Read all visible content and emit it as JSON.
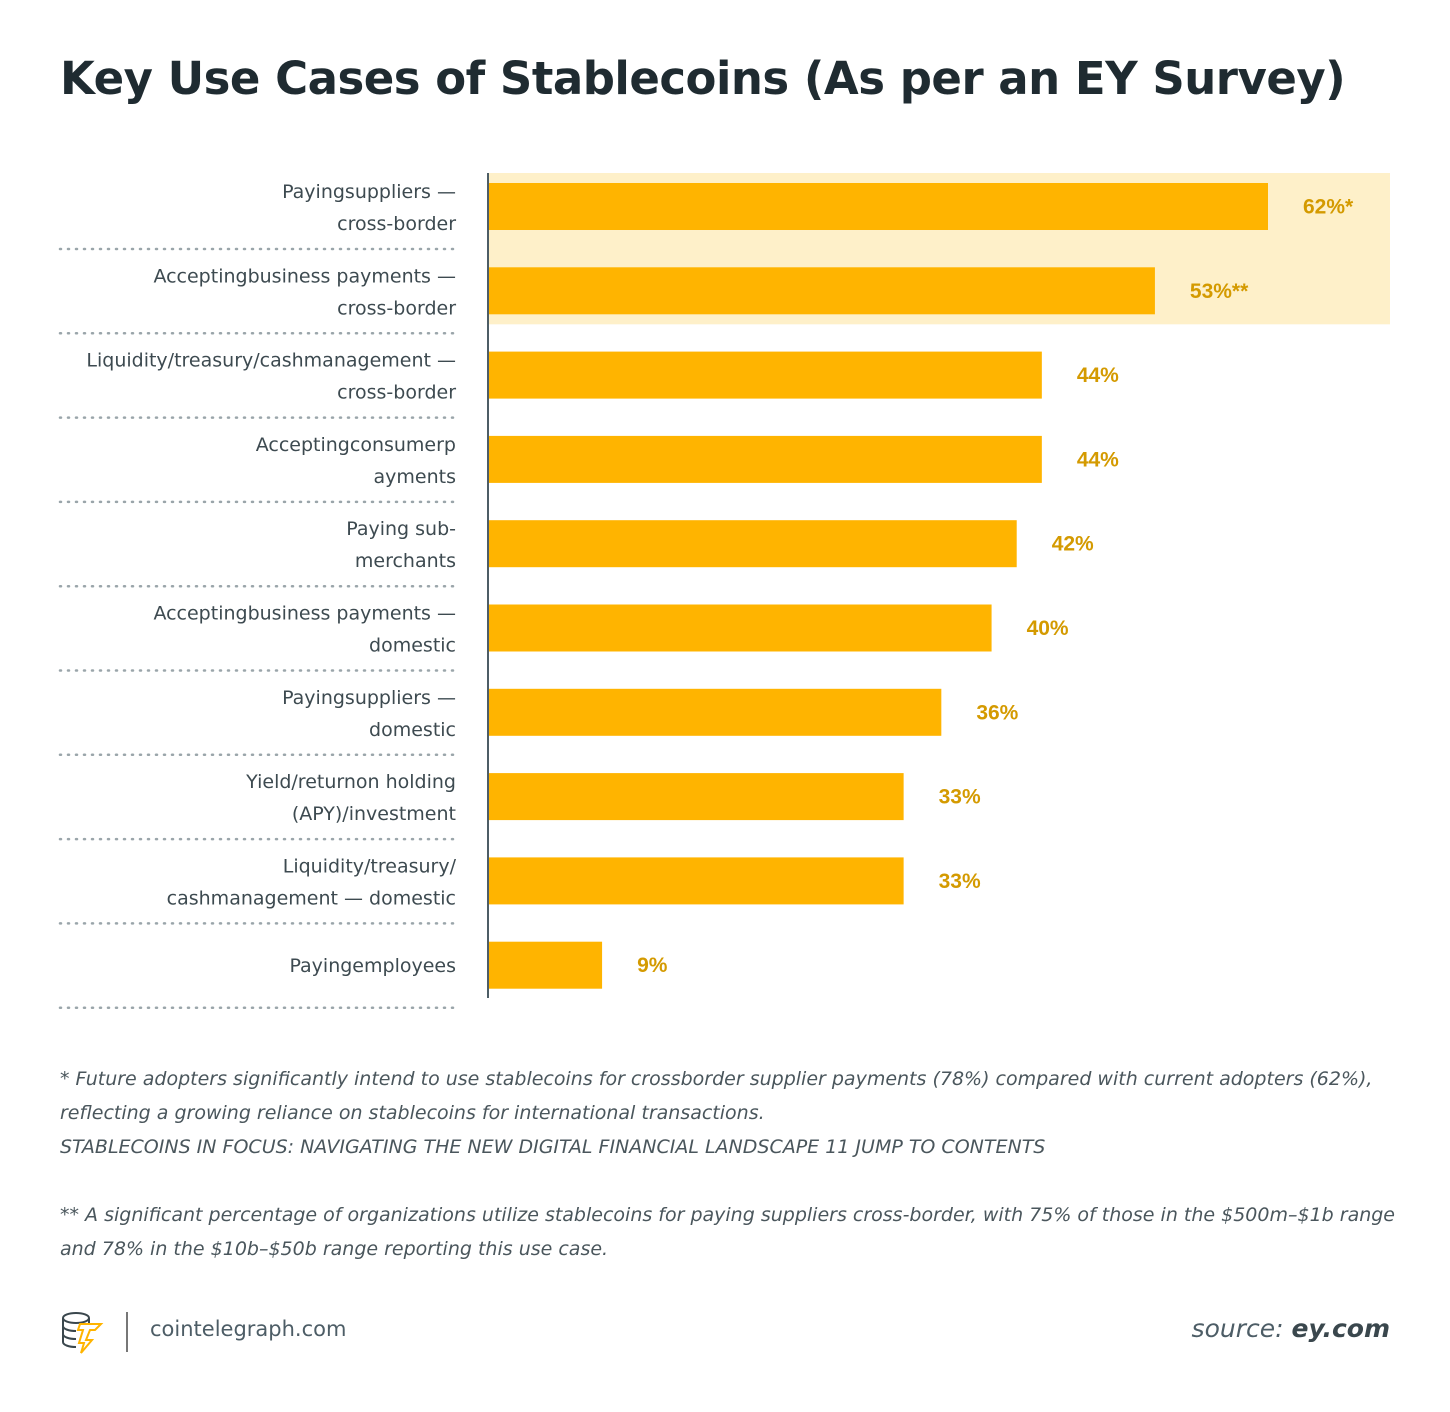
{
  "title": "Key Use Cases of Stablecoins (As per an EY Survey)",
  "chart_data": {
    "type": "bar",
    "orientation": "horizontal",
    "title": "Key Use Cases of Stablecoins (As per an EY Survey)",
    "categories": [
      [
        "Payingsuppliers —",
        "cross-border"
      ],
      [
        "Acceptingbusiness payments —",
        "cross-border"
      ],
      [
        "Liquidity/treasury/cashmanagement —",
        "cross-border"
      ],
      [
        "Acceptingconsumerp",
        "ayments"
      ],
      [
        "Paying sub-",
        "merchants"
      ],
      [
        "Acceptingbusiness payments —",
        "domestic"
      ],
      [
        "Payingsuppliers —",
        "domestic"
      ],
      [
        "Yield/returnon holding",
        "(APY)/investment"
      ],
      [
        "Liquidity/treasury/",
        "cashmanagement — domestic"
      ],
      [
        "Payingemployees"
      ]
    ],
    "values": [
      62,
      53,
      44,
      44,
      42,
      40,
      36,
      33,
      33,
      9
    ],
    "value_labels": [
      "62%*",
      "53%**",
      "44%",
      "44%",
      "42%",
      "40%",
      "36%",
      "33%",
      "33%",
      "9%"
    ],
    "highlighted": [
      0,
      1
    ],
    "xlim": [
      0,
      70
    ],
    "grid": false,
    "colors": {
      "bar": "#FFB400",
      "highlight": "#FEF0C9",
      "value_label": "#D49A00"
    }
  },
  "notes": {
    "note1": "* Future adopters significantly intend to use stablecoins for crossborder supplier payments (78%) compared with current adopters (62%), reflecting a growing reliance on stablecoins for international transactions.",
    "note1b": "STABLECOINS IN FOCUS: NAVIGATING THE NEW DIGITAL FINANCIAL LANDSCAPE 11 JUMP TO CONTENTS",
    "note2": "** A significant percentage of organizations utilize stablecoins for paying suppliers cross-border, with 75% of those in the $500m–$1b range and 78% in the $10b–$50b range reporting this use case."
  },
  "footer": {
    "site": "cointelegraph.com",
    "source_label": "source:",
    "source_value": "ey.com",
    "logo_icon": "cointelegraph-coins-bolt-icon"
  }
}
